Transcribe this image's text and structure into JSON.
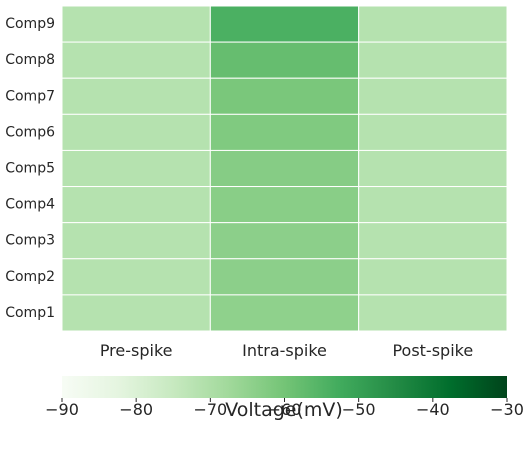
{
  "chart_data": {
    "type": "heatmap",
    "title": "",
    "rows": [
      "Comp9",
      "Comp8",
      "Comp7",
      "Comp6",
      "Comp5",
      "Comp4",
      "Comp3",
      "Comp2",
      "Comp1"
    ],
    "columns": [
      "Pre-spike",
      "Intra-spike",
      "Post-spike"
    ],
    "values": [
      [
        -71.5,
        -54.0,
        -71.5
      ],
      [
        -71.5,
        -58.0,
        -71.5
      ],
      [
        -71.5,
        -61.0,
        -71.5
      ],
      [
        -71.5,
        -62.0,
        -71.5
      ],
      [
        -71.5,
        -63.0,
        -71.5
      ],
      [
        -71.5,
        -63.5,
        -71.5
      ],
      [
        -71.5,
        -64.0,
        -71.5
      ],
      [
        -71.5,
        -64.0,
        -71.5
      ],
      [
        -71.5,
        -64.5,
        -71.5
      ]
    ],
    "colormap": "Greens",
    "colorbar": {
      "label": "Voltage(mV)",
      "range": [
        -90,
        -30
      ],
      "ticks": [
        -90,
        -80,
        -70,
        -60,
        -50,
        -40,
        -30
      ],
      "tick_labels": [
        "−90",
        "−80",
        "−70",
        "−60",
        "−50",
        "−40",
        "−30"
      ],
      "orientation": "horizontal"
    },
    "grid_color": "#ffffff"
  }
}
